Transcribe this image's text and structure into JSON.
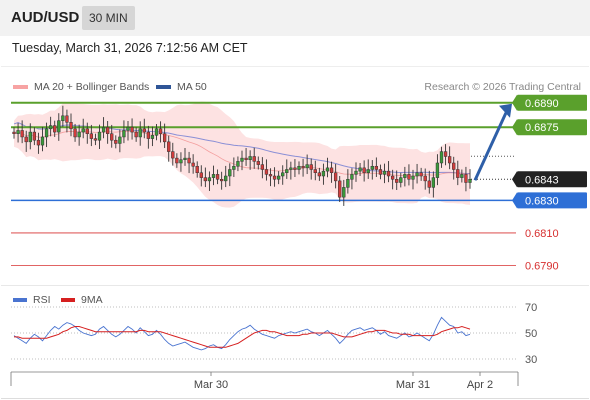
{
  "header": {
    "symbol": "AUD/USD",
    "timeframe": "30 MIN"
  },
  "timestamp": "Tuesday, March 31, 2026 7:12:56 AM CET",
  "legend": {
    "ma20_label": "MA 20 + Bollinger Bands",
    "ma50_label": "MA 50",
    "copyright": "Research © 2026 Trading Central",
    "rsi_label": "RSI",
    "ma9_label": "9MA"
  },
  "colors": {
    "up": "#3a9a3a",
    "down": "#d23c3c",
    "candle_body": "#333333",
    "bollinger": "#fde2e2",
    "ma20": "#f08080",
    "ma50": "#8a8fd6",
    "resistance": "#5aa02c",
    "support": "#2e6fd6",
    "target": "#d73030",
    "arrow": "#2e5fa8",
    "rsi": "#4a74d0",
    "rsi_ma": "#d62020"
  },
  "chart_data": [
    {
      "type": "candlestick",
      "title": "",
      "xlabel": "",
      "ylabel": "",
      "ylim": [
        0.6778,
        0.6912
      ],
      "x_ticks": [
        "Mar 30",
        "Mar 31",
        "Apr 2"
      ],
      "series": [
        {
          "name": "AUD/USD",
          "close": [
            0.6871,
            0.6873,
            0.6869,
            0.6866,
            0.6872,
            0.6867,
            0.6864,
            0.6869,
            0.6874,
            0.6876,
            0.6872,
            0.6879,
            0.6882,
            0.6878,
            0.6874,
            0.6869,
            0.6872,
            0.6874,
            0.6871,
            0.6868,
            0.6867,
            0.6872,
            0.6875,
            0.6871,
            0.6867,
            0.6865,
            0.6869,
            0.6873,
            0.6875,
            0.6872,
            0.6869,
            0.6874,
            0.6872,
            0.6868,
            0.687,
            0.6874,
            0.6871,
            0.6866,
            0.686,
            0.6856,
            0.6853,
            0.6855,
            0.6856,
            0.6853,
            0.6851,
            0.6847,
            0.6844,
            0.6842,
            0.6844,
            0.6846,
            0.6843,
            0.6842,
            0.6845,
            0.6849,
            0.6851,
            0.6854,
            0.6856,
            0.6855,
            0.6857,
            0.6854,
            0.6852,
            0.6849,
            0.6846,
            0.6845,
            0.6843,
            0.6845,
            0.6847,
            0.6849,
            0.685,
            0.6849,
            0.6851,
            0.685,
            0.6852,
            0.6849,
            0.6847,
            0.6845,
            0.6848,
            0.685,
            0.6847,
            0.6842,
            0.6832,
            0.6838,
            0.6843,
            0.6846,
            0.6848,
            0.685,
            0.6847,
            0.6849,
            0.6851,
            0.6849,
            0.6846,
            0.6848,
            0.6845,
            0.6843,
            0.6841,
            0.6844,
            0.6846,
            0.6843,
            0.6845,
            0.6847,
            0.6845,
            0.6842,
            0.6838,
            0.6844,
            0.6853,
            0.686,
            0.6857,
            0.6853,
            0.6849,
            0.6844,
            0.6846,
            0.6841,
            0.6843
          ],
          "high_max": 0.6884,
          "low_min": 0.6829
        },
        {
          "name": "MA 20 + Bollinger Bands"
        },
        {
          "name": "MA 50"
        }
      ],
      "levels": [
        {
          "value": 0.689,
          "label": "0.6890",
          "kind": "resistance"
        },
        {
          "value": 0.6875,
          "label": "0.6875",
          "kind": "resistance"
        },
        {
          "value": 0.6843,
          "label": "0.6843",
          "kind": "current"
        },
        {
          "value": 0.683,
          "label": "0.6830",
          "kind": "pivot"
        },
        {
          "value": 0.681,
          "label": "0.6810",
          "kind": "support"
        },
        {
          "value": 0.679,
          "label": "0.6790",
          "kind": "support"
        }
      ],
      "projection": {
        "from": 0.6843,
        "to": 0.689
      }
    },
    {
      "type": "line",
      "title": "",
      "xlabel": "",
      "ylabel": "",
      "ylim": [
        20,
        80
      ],
      "y_ticks": [
        70,
        50,
        30
      ],
      "series": [
        {
          "name": "RSI",
          "values": [
            48,
            46,
            44,
            42,
            46,
            49,
            47,
            44,
            48,
            52,
            55,
            53,
            56,
            58,
            57,
            55,
            52,
            50,
            49,
            48,
            49,
            53,
            55,
            52,
            49,
            47,
            49,
            52,
            55,
            53,
            50,
            54,
            51,
            48,
            49,
            52,
            49,
            45,
            42,
            40,
            41,
            42,
            43,
            41,
            39,
            38,
            37,
            38,
            40,
            41,
            39,
            38,
            41,
            45,
            48,
            51,
            53,
            54,
            56,
            53,
            51,
            49,
            48,
            47,
            46,
            48,
            49,
            50,
            51,
            50,
            51,
            52,
            53,
            51,
            50,
            48,
            50,
            52,
            49,
            46,
            42,
            45,
            49,
            52,
            53,
            54,
            52,
            53,
            54,
            52,
            49,
            51,
            48,
            47,
            46,
            48,
            50,
            47,
            48,
            50,
            48,
            46,
            44,
            49,
            56,
            62,
            59,
            56,
            55,
            50,
            51,
            48,
            49
          ]
        },
        {
          "name": "9MA",
          "values": [
            47,
            47,
            46,
            46,
            46,
            46,
            46,
            46,
            46,
            47,
            48,
            49,
            51,
            52,
            54,
            55,
            55,
            54,
            53,
            52,
            51,
            51,
            51,
            51,
            51,
            51,
            51,
            51,
            51,
            51,
            51,
            52,
            52,
            51,
            51,
            51,
            51,
            50,
            49,
            48,
            47,
            46,
            45,
            44,
            43,
            42,
            41,
            40,
            39,
            39,
            39,
            39,
            39,
            40,
            41,
            42,
            44,
            46,
            48,
            50,
            51,
            52,
            52,
            51,
            51,
            50,
            49,
            48,
            48,
            48,
            48,
            49,
            49,
            50,
            50,
            50,
            50,
            50,
            50,
            49,
            48,
            47,
            47,
            47,
            48,
            49,
            50,
            51,
            51,
            52,
            52,
            52,
            51,
            50,
            50,
            49,
            49,
            49,
            48,
            48,
            48,
            48,
            48,
            48,
            49,
            51,
            52,
            53,
            54,
            54,
            55,
            54,
            53
          ]
        }
      ]
    }
  ]
}
